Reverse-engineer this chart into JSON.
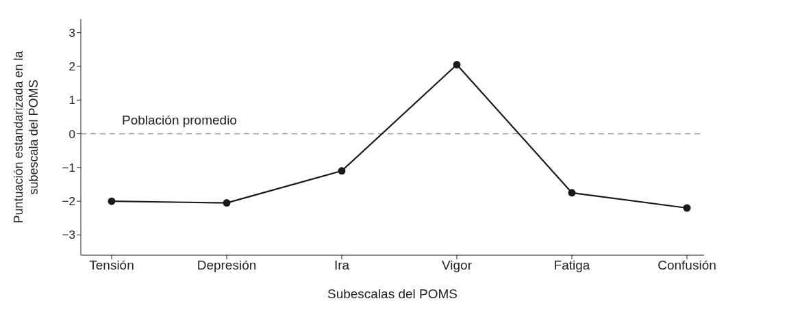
{
  "chart_data": {
    "type": "line",
    "xlabel": "Subescalas del POMS",
    "ylabel": "Puntuación estandarizada en la subescala del POMS",
    "categories": [
      "Tensión",
      "Depresión",
      "Ira",
      "Vigor",
      "Fatiga",
      "Confusión"
    ],
    "series": [
      {
        "color": "#1a1a1a",
        "values": [
          -2.0,
          -2.05,
          -1.1,
          2.05,
          -1.75,
          -2.2
        ]
      }
    ],
    "ylim": [
      -3.6,
      3.4
    ],
    "yticks": [
      -3,
      -2,
      -1,
      0,
      1,
      2,
      3
    ],
    "ref_lines": [
      {
        "axis": "y",
        "value": 0,
        "label": "Población promedio",
        "color": "#888888",
        "line_style": "dashed"
      }
    ],
    "grid": false,
    "legend": false,
    "marker": "circle",
    "line_style": "solid"
  }
}
